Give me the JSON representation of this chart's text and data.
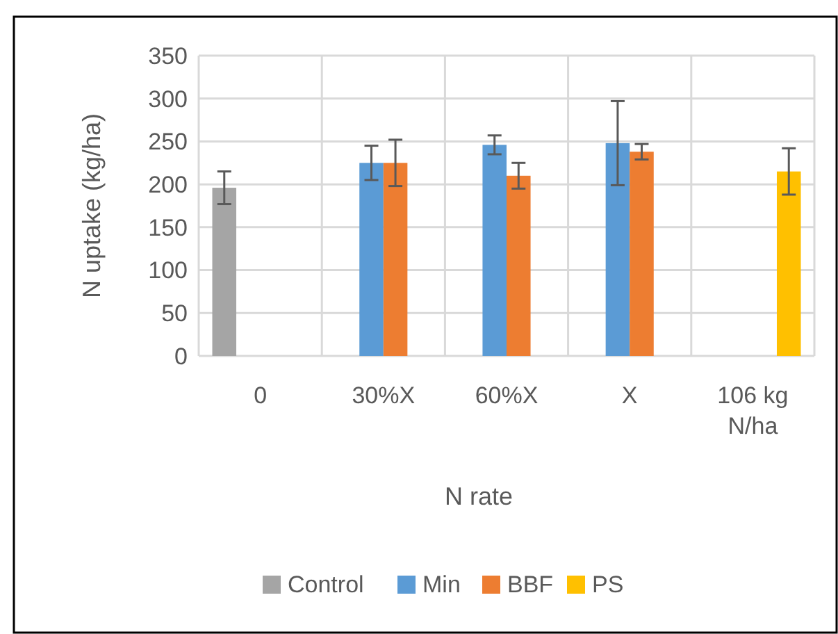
{
  "chart_data": {
    "type": "bar",
    "xlabel": "N rate",
    "ylabel": "N uptake (kg/ha)",
    "categories": [
      "0",
      "30%X",
      "60%X",
      "X",
      "106 kg N/ha"
    ],
    "series": [
      {
        "name": "Control",
        "color": "#a5a5a5",
        "values": [
          196,
          null,
          null,
          null,
          null
        ],
        "errors": [
          19,
          null,
          null,
          null,
          null
        ]
      },
      {
        "name": "Min",
        "color": "#5b9bd5",
        "values": [
          null,
          225,
          246,
          248,
          null
        ],
        "errors": [
          null,
          20,
          11,
          49,
          null
        ]
      },
      {
        "name": "BBF",
        "color": "#ed7d31",
        "values": [
          null,
          225,
          210,
          238,
          null
        ],
        "errors": [
          null,
          27,
          15,
          9,
          null
        ]
      },
      {
        "name": "PS",
        "color": "#ffc000",
        "values": [
          null,
          null,
          null,
          null,
          215
        ],
        "errors": [
          null,
          null,
          null,
          null,
          27
        ]
      }
    ],
    "ylim": [
      0,
      350
    ],
    "yticks": [
      0,
      50,
      100,
      150,
      200,
      250,
      300,
      350
    ],
    "grid": true,
    "legend": "bottom"
  }
}
